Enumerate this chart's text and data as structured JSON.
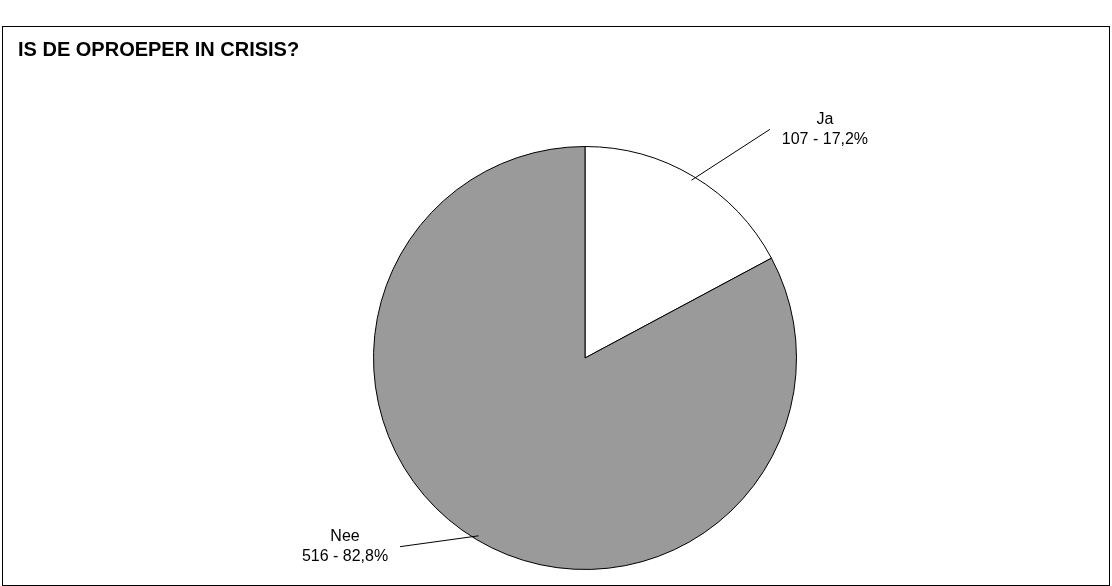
{
  "chart_data": {
    "type": "pie",
    "title": "IS DE OPROEPER IN CRISIS?",
    "categories": [
      "Ja",
      "Nee"
    ],
    "values": [
      107,
      516
    ],
    "colors": [
      "#ffffff",
      "#9a9a9a"
    ],
    "value_labels": [
      "107 - 17,2%",
      "516 - 82,8%"
    ],
    "legend": false
  }
}
